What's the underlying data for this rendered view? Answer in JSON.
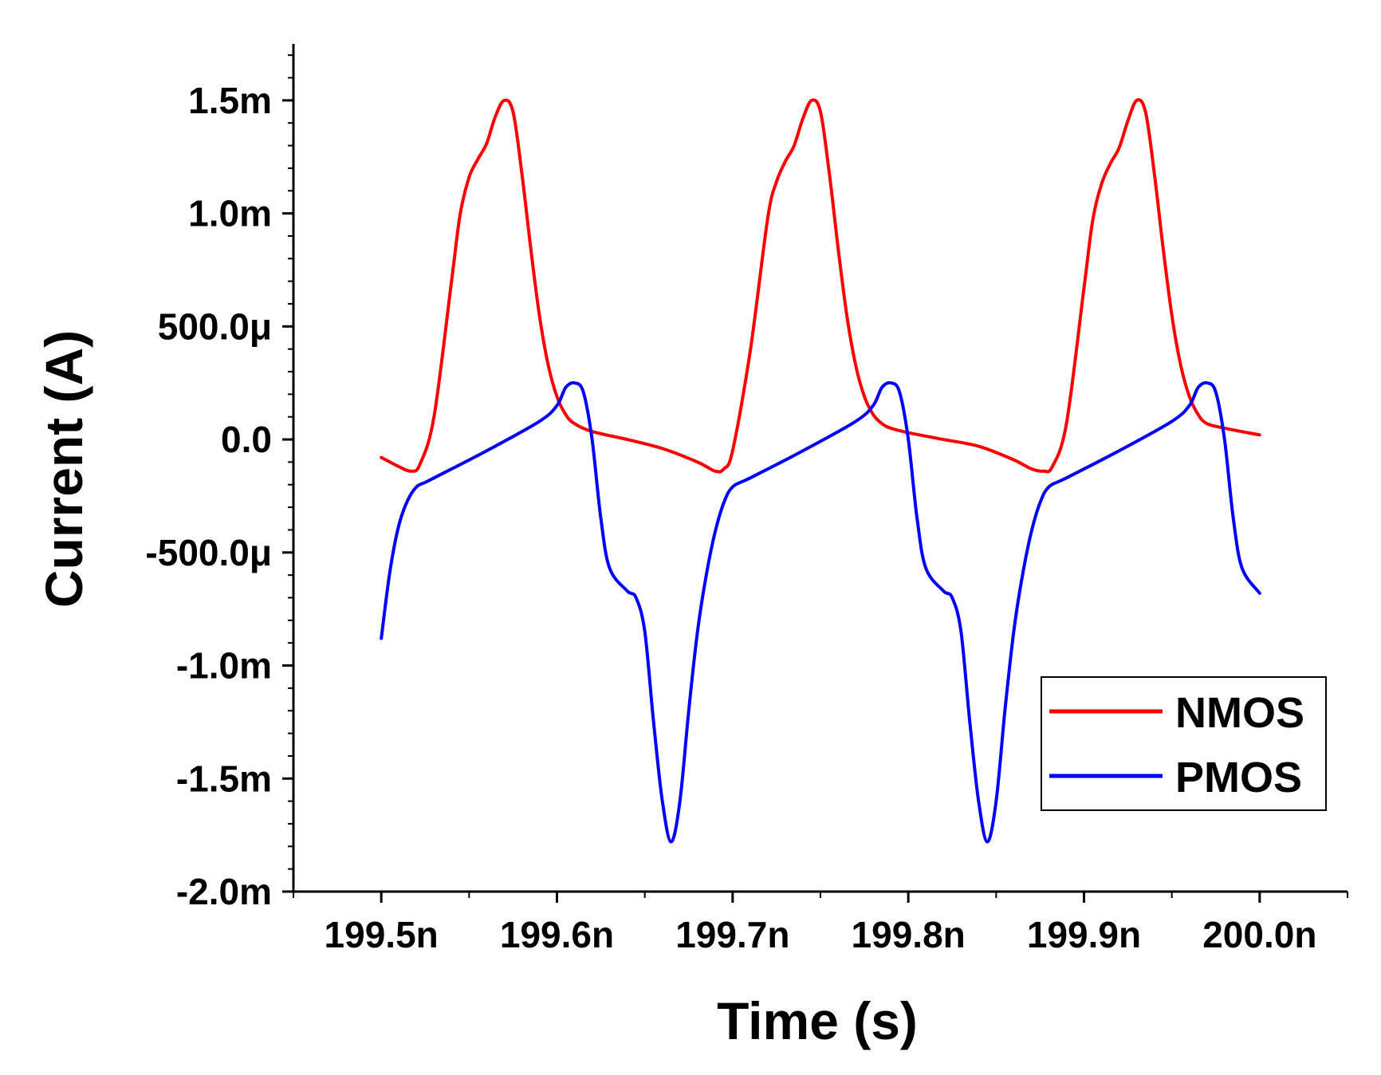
{
  "chart_data": {
    "type": "line",
    "title": "",
    "xlabel": "Time (s)",
    "ylabel": "Current (A)",
    "xlim": [
      199.45,
      200.05
    ],
    "ylim": [
      -0.002,
      0.00175
    ],
    "x_unit": "ns",
    "x_ticks": [
      {
        "value": 199.5,
        "label": "199.5n"
      },
      {
        "value": 199.6,
        "label": "199.6n"
      },
      {
        "value": 199.7,
        "label": "199.7n"
      },
      {
        "value": 199.8,
        "label": "199.8n"
      },
      {
        "value": 199.9,
        "label": "199.9n"
      },
      {
        "value": 200.0,
        "label": "200.0n"
      }
    ],
    "y_ticks": [
      {
        "value": 0.0015,
        "label": "1.5m"
      },
      {
        "value": 0.001,
        "label": "1.0m"
      },
      {
        "value": 0.0005,
        "label": "500.0μ"
      },
      {
        "value": 0.0,
        "label": "0.0"
      },
      {
        "value": -0.0005,
        "label": "-500.0μ"
      },
      {
        "value": -0.001,
        "label": "-1.0m"
      },
      {
        "value": -0.0015,
        "label": "-1.5m"
      },
      {
        "value": -0.002,
        "label": "-2.0m"
      }
    ],
    "grid": false,
    "legend_position": "bottom-right",
    "series": [
      {
        "name": "NMOS",
        "color": "#ff0000",
        "x": [
          199.5,
          199.51,
          199.517,
          199.522,
          199.53,
          199.54,
          199.545,
          199.55,
          199.555,
          199.56,
          199.565,
          199.57,
          199.575,
          199.58,
          199.585,
          199.59,
          199.595,
          199.6,
          199.605,
          199.61,
          199.62,
          199.64,
          199.66,
          199.68,
          199.69,
          199.695,
          199.7,
          199.71,
          199.72,
          199.725,
          199.73,
          199.735,
          199.74,
          199.745,
          199.75,
          199.755,
          199.76,
          199.765,
          199.77,
          199.775,
          199.78,
          199.785,
          199.79,
          199.8,
          199.82,
          199.84,
          199.86,
          199.87,
          199.877,
          199.882,
          199.89,
          199.9,
          199.905,
          199.91,
          199.915,
          199.92,
          199.925,
          199.93,
          199.935,
          199.94,
          199.945,
          199.95,
          199.955,
          199.96,
          199.965,
          199.97,
          199.98,
          200.0
        ],
        "y": [
          -8e-05,
          -0.00012,
          -0.00014,
          -0.00011,
          0.0001,
          0.0007,
          0.001,
          0.00116,
          0.00124,
          0.00131,
          0.00143,
          0.0015,
          0.00145,
          0.00118,
          0.00085,
          0.00055,
          0.00033,
          0.00019,
          0.00011,
          7e-05,
          3.5e-05,
          0.0,
          -4e-05,
          -0.0001,
          -0.00014,
          -0.00013,
          -5e-05,
          0.00039,
          0.00098,
          0.00114,
          0.00123,
          0.0013,
          0.00142,
          0.0015,
          0.00145,
          0.00118,
          0.00085,
          0.00055,
          0.00033,
          0.00019,
          0.00011,
          7e-05,
          5e-05,
          3e-05,
          0.0,
          -3e-05,
          -9e-05,
          -0.00013,
          -0.00014,
          -0.00012,
          7e-05,
          0.00067,
          0.00097,
          0.00113,
          0.00122,
          0.00129,
          0.00141,
          0.0015,
          0.00145,
          0.00118,
          0.00085,
          0.00055,
          0.00033,
          0.00019,
          0.00011,
          7e-05,
          5e-05,
          2e-05
        ]
      },
      {
        "name": "PMOS",
        "color": "#0000ff",
        "x": [
          199.5,
          199.505,
          199.51,
          199.515,
          199.52,
          199.525,
          199.53,
          199.56,
          199.59,
          199.6,
          199.605,
          199.61,
          199.615,
          199.62,
          199.625,
          199.63,
          199.64,
          199.645,
          199.65,
          199.655,
          199.66,
          199.665,
          199.67,
          199.675,
          199.68,
          199.685,
          199.69,
          199.695,
          199.7,
          199.71,
          199.74,
          199.77,
          199.78,
          199.785,
          199.79,
          199.795,
          199.8,
          199.805,
          199.81,
          199.82,
          199.825,
          199.83,
          199.835,
          199.84,
          199.845,
          199.85,
          199.855,
          199.86,
          199.865,
          199.87,
          199.875,
          199.88,
          199.89,
          199.92,
          199.95,
          199.96,
          199.965,
          199.97,
          199.975,
          199.98,
          199.985,
          199.99,
          200.0
        ],
        "y": [
          -0.00088,
          -0.00058,
          -0.00038,
          -0.00027,
          -0.00021,
          -0.00019,
          -0.00017,
          -5e-05,
          8e-05,
          0.00015,
          0.00023,
          0.00025,
          0.00021,
          0.0,
          -0.00035,
          -0.00057,
          -0.00067,
          -0.0007,
          -0.00085,
          -0.00125,
          -0.0016,
          -0.00178,
          -0.0016,
          -0.0012,
          -0.00085,
          -0.0006,
          -0.00041,
          -0.00028,
          -0.00021,
          -0.00017,
          -5e-05,
          8e-05,
          0.00015,
          0.00023,
          0.00025,
          0.00021,
          0.0,
          -0.00035,
          -0.00057,
          -0.00067,
          -0.0007,
          -0.00085,
          -0.00125,
          -0.0016,
          -0.00178,
          -0.0016,
          -0.0012,
          -0.00085,
          -0.0006,
          -0.00041,
          -0.00028,
          -0.00021,
          -0.00017,
          -5e-05,
          8e-05,
          0.00015,
          0.00023,
          0.00025,
          0.00021,
          0.0,
          -0.00035,
          -0.00057,
          -0.00068
        ]
      }
    ]
  }
}
